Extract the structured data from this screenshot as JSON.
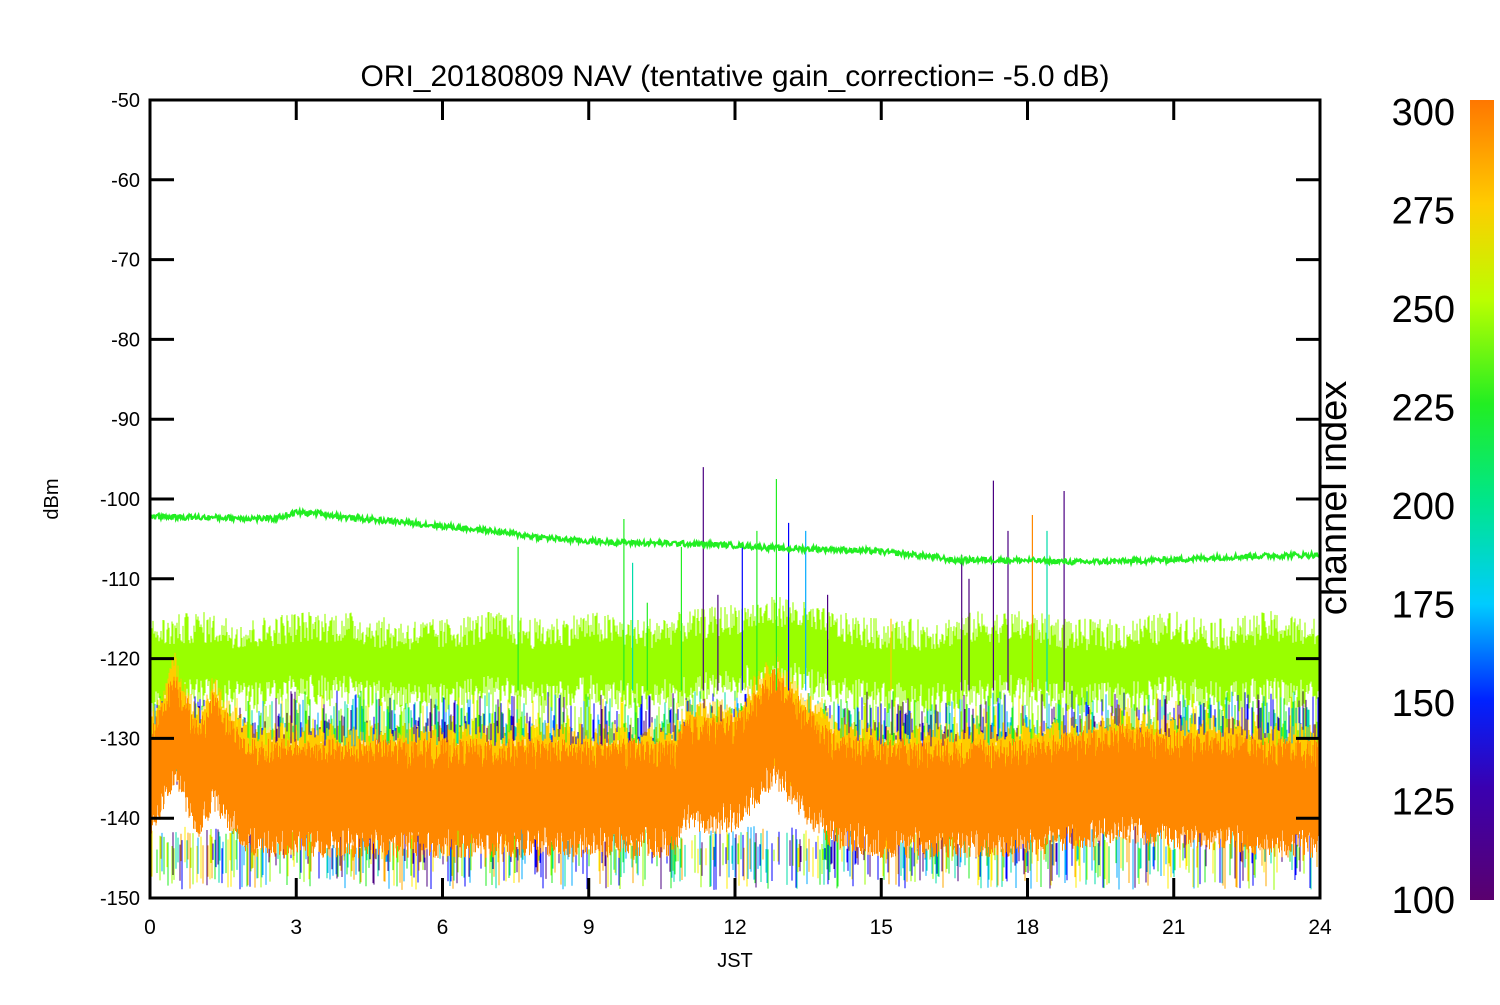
{
  "chart_data": {
    "type": "line",
    "title": "ORI_20180809 NAV (tentative gain_correction= -5.0 dB)",
    "xlabel": "JST",
    "ylabel": "dBm",
    "xlim": [
      0,
      24
    ],
    "ylim": [
      -150,
      -50
    ],
    "x_ticks": [
      "0",
      "3",
      "6",
      "9",
      "12",
      "15",
      "18",
      "21",
      "24"
    ],
    "y_ticks": [
      "-50",
      "-60",
      "-70",
      "-80",
      "-90",
      "-100",
      "-110",
      "-120",
      "-130",
      "-140",
      "-150"
    ],
    "grid": false,
    "colorbar": {
      "label": "channel index",
      "range": [
        100,
        300
      ],
      "ticks": [
        "300",
        "275",
        "250",
        "225",
        "200",
        "175",
        "150",
        "125",
        "100"
      ],
      "colormap": "rainbow (purple-blue-cyan-green-yellow-orange)"
    },
    "series": [
      {
        "channel_index": 235,
        "color": "#22ee22",
        "x": [
          0,
          1,
          2,
          2.5,
          3,
          3.5,
          4,
          5,
          6,
          7,
          8,
          9,
          10,
          11,
          12,
          13,
          14,
          15,
          16,
          16.5,
          17,
          18,
          19,
          20,
          21,
          22,
          23,
          24
        ],
        "y": [
          -102.2,
          -102.3,
          -102.4,
          -102.5,
          -101.7,
          -101.8,
          -102.3,
          -102.8,
          -103.4,
          -104.0,
          -104.8,
          -105.3,
          -105.5,
          -105.6,
          -105.8,
          -106.2,
          -106.3,
          -106.6,
          -107.2,
          -107.7,
          -107.6,
          -107.7,
          -107.9,
          -107.8,
          -107.6,
          -107.3,
          -107.1,
          -107.0
        ]
      },
      {
        "channel_index": 260,
        "color": "#99ff00",
        "x": [
          0,
          1,
          2,
          3,
          4,
          5,
          6,
          7,
          8,
          9,
          10,
          11,
          12,
          13,
          14,
          15,
          16,
          17,
          18,
          19,
          20,
          21,
          22,
          23,
          24
        ],
        "y": [
          -121,
          -120,
          -121,
          -120,
          -120,
          -121,
          -121,
          -120,
          -121,
          -120,
          -121,
          -120,
          -119,
          -118,
          -120,
          -121,
          -121,
          -120,
          -120,
          -121,
          -121,
          -120,
          -121,
          -120,
          -121
        ]
      },
      {
        "channel_index": 290,
        "color": "#ff8800",
        "x": [
          0,
          0.5,
          1,
          1.3,
          2,
          3,
          4,
          5,
          6,
          7,
          8,
          9,
          10,
          10.8,
          11,
          12,
          12.8,
          13.5,
          14,
          15,
          16,
          17,
          18,
          19,
          20,
          21,
          22,
          23,
          24
        ],
        "y": [
          -136,
          -128,
          -135,
          -131,
          -137,
          -137,
          -137,
          -137,
          -137,
          -137,
          -137,
          -137,
          -137,
          -137,
          -134,
          -134,
          -128,
          -133,
          -136,
          -137,
          -137,
          -137,
          -137,
          -136,
          -135,
          -136,
          -136,
          -137,
          -137
        ]
      }
    ]
  }
}
